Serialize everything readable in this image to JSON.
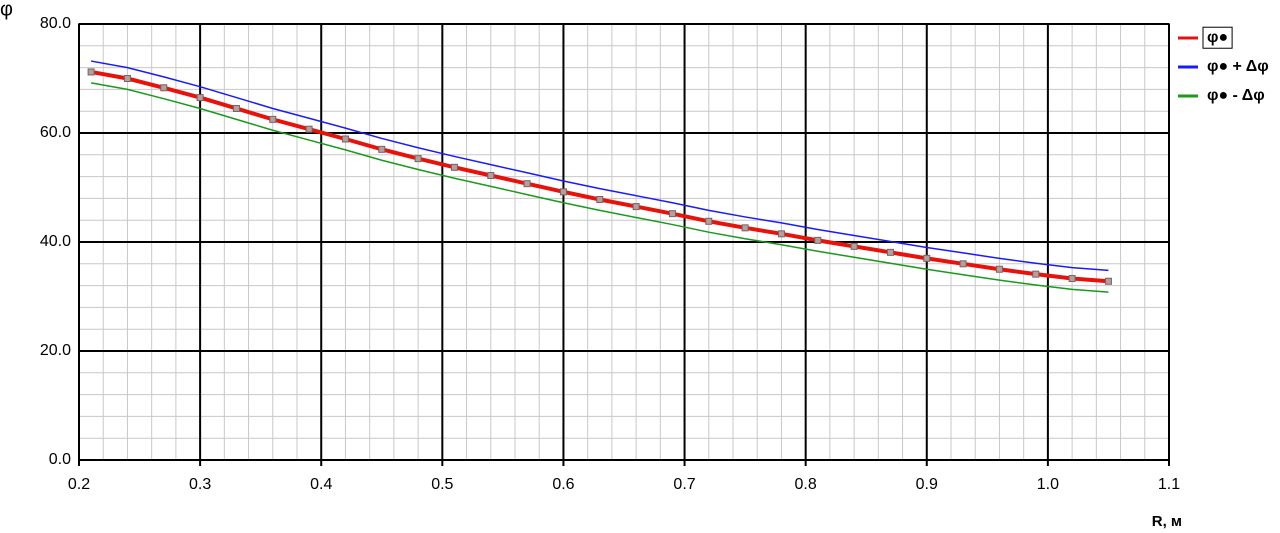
{
  "chart_data": {
    "type": "line",
    "y_label": "φ",
    "x_label": "R, м",
    "x": [
      0.21,
      0.24,
      0.27,
      0.3,
      0.33,
      0.36,
      0.39,
      0.42,
      0.45,
      0.48,
      0.51,
      0.54,
      0.57,
      0.6,
      0.63,
      0.66,
      0.69,
      0.72,
      0.75,
      0.78,
      0.81,
      0.84,
      0.87,
      0.9,
      0.93,
      0.96,
      0.99,
      1.02,
      1.05
    ],
    "series": [
      {
        "name": "φ●",
        "color": "#e8120c",
        "markers": true,
        "values": [
          71.2,
          70.0,
          68.3,
          66.5,
          64.5,
          62.5,
          60.7,
          58.9,
          57.0,
          55.3,
          53.7,
          52.2,
          50.7,
          49.2,
          47.8,
          46.5,
          45.2,
          43.8,
          42.6,
          41.5,
          40.3,
          39.2,
          38.1,
          37.0,
          36.0,
          35.0,
          34.1,
          33.3,
          32.8
        ]
      },
      {
        "name": "φ● + Δφ",
        "color": "#1a1aff",
        "markers": false,
        "values": [
          73.2,
          72.0,
          70.3,
          68.5,
          66.5,
          64.5,
          62.7,
          60.9,
          59.0,
          57.3,
          55.7,
          54.2,
          52.7,
          51.2,
          49.8,
          48.5,
          47.2,
          45.8,
          44.6,
          43.5,
          42.3,
          41.2,
          40.1,
          39.0,
          38.0,
          37.0,
          36.1,
          35.3,
          34.8
        ]
      },
      {
        "name": "φ● - Δφ",
        "color": "#1a9a1a",
        "markers": false,
        "values": [
          69.2,
          68.0,
          66.3,
          64.5,
          62.5,
          60.5,
          58.7,
          56.9,
          55.0,
          53.3,
          51.7,
          50.2,
          48.7,
          47.2,
          45.8,
          44.5,
          43.2,
          41.8,
          40.6,
          39.5,
          38.3,
          37.2,
          36.1,
          35.0,
          34.0,
          33.0,
          32.1,
          31.3,
          30.8
        ]
      }
    ],
    "xlim": [
      0.2,
      1.1
    ],
    "xticks": [
      0.2,
      0.3,
      0.4,
      0.5,
      0.6,
      0.7,
      0.8,
      0.9,
      {
        "value": 1.0,
        "label": "1.0"
      },
      1.1
    ],
    "ylim": [
      0,
      80
    ],
    "yticks": [
      {
        "value": 0,
        "label": "0.0"
      },
      {
        "value": 20,
        "label": "20.0"
      },
      {
        "value": 40,
        "label": "40.0"
      },
      {
        "value": 60,
        "label": "60.0"
      },
      {
        "value": 80,
        "label": "80.0"
      }
    ],
    "grid": true,
    "legend": "right"
  }
}
